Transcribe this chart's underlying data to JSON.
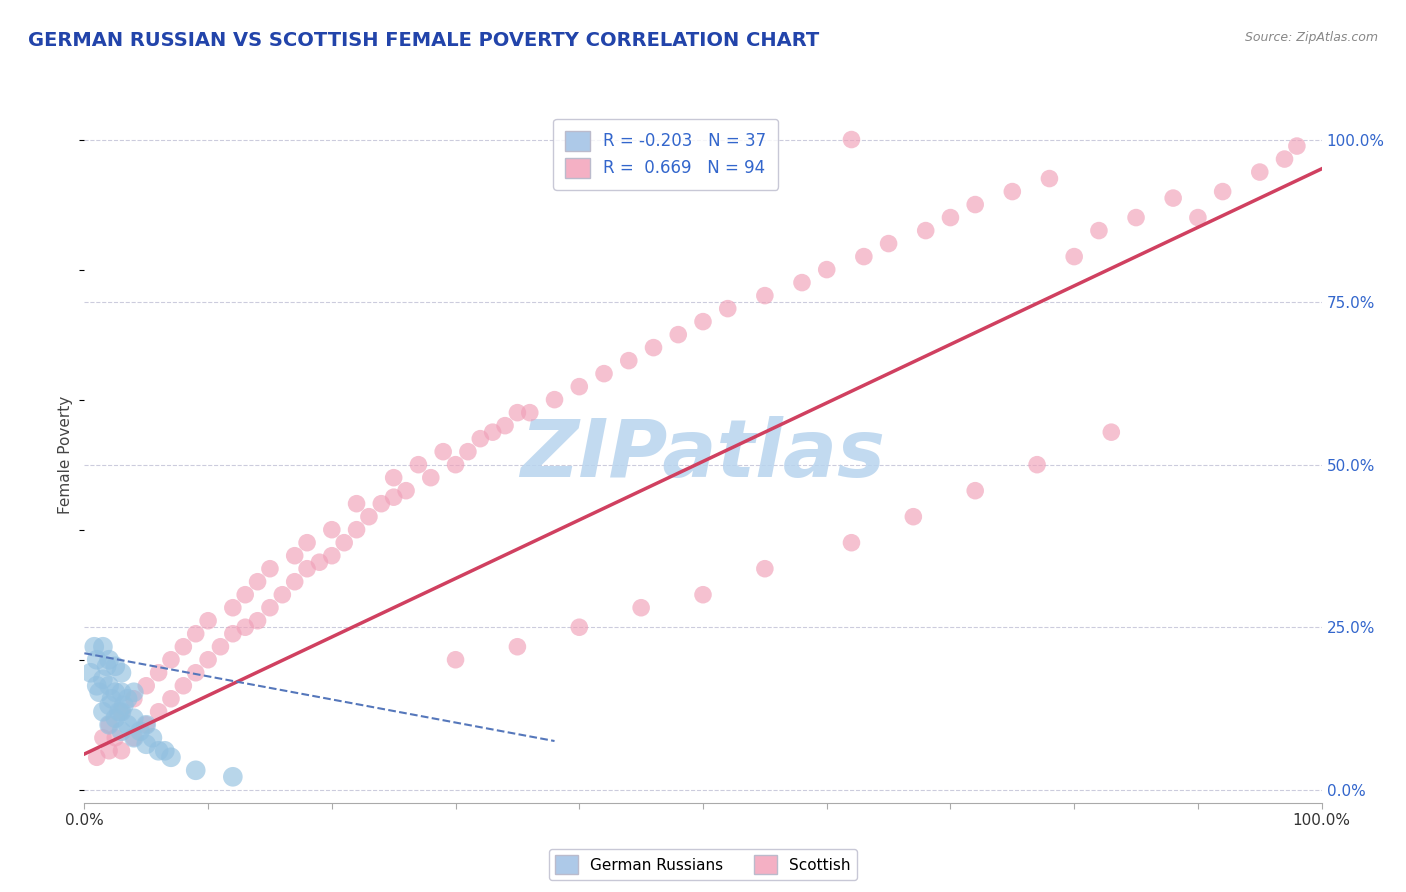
{
  "title": "GERMAN RUSSIAN VS SCOTTISH FEMALE POVERTY CORRELATION CHART",
  "source_text": "Source: ZipAtlas.com",
  "ylabel": "Female Poverty",
  "xlim": [
    0,
    1
  ],
  "ylim": [
    -0.02,
    1.05
  ],
  "blue_color": "#92c0e0",
  "pink_color": "#f0a0b8",
  "blue_line_color": "#5577bb",
  "pink_line_color": "#d04060",
  "legend_text_color": "#3366cc",
  "title_color": "#2244aa",
  "grid_color": "#ccccdd",
  "watermark_color": "#b8d4ee",
  "background_color": "#ffffff",
  "german_russian_x": [
    0.005,
    0.008,
    0.01,
    0.01,
    0.012,
    0.015,
    0.015,
    0.015,
    0.018,
    0.02,
    0.02,
    0.02,
    0.02,
    0.022,
    0.025,
    0.025,
    0.025,
    0.028,
    0.03,
    0.03,
    0.03,
    0.03,
    0.032,
    0.035,
    0.035,
    0.04,
    0.04,
    0.04,
    0.045,
    0.05,
    0.05,
    0.055,
    0.06,
    0.065,
    0.07,
    0.09,
    0.12
  ],
  "german_russian_y": [
    0.18,
    0.22,
    0.16,
    0.2,
    0.15,
    0.12,
    0.17,
    0.22,
    0.19,
    0.1,
    0.13,
    0.16,
    0.2,
    0.14,
    0.11,
    0.15,
    0.19,
    0.12,
    0.09,
    0.12,
    0.15,
    0.18,
    0.13,
    0.1,
    0.14,
    0.08,
    0.11,
    0.15,
    0.09,
    0.07,
    0.1,
    0.08,
    0.06,
    0.06,
    0.05,
    0.03,
    0.02
  ],
  "scottish_x": [
    0.01,
    0.015,
    0.02,
    0.02,
    0.025,
    0.03,
    0.03,
    0.04,
    0.04,
    0.05,
    0.05,
    0.06,
    0.06,
    0.07,
    0.07,
    0.08,
    0.08,
    0.09,
    0.09,
    0.1,
    0.1,
    0.11,
    0.12,
    0.12,
    0.13,
    0.13,
    0.14,
    0.14,
    0.15,
    0.15,
    0.16,
    0.17,
    0.17,
    0.18,
    0.18,
    0.19,
    0.2,
    0.2,
    0.21,
    0.22,
    0.22,
    0.23,
    0.24,
    0.25,
    0.25,
    0.26,
    0.27,
    0.28,
    0.29,
    0.3,
    0.31,
    0.32,
    0.33,
    0.34,
    0.35,
    0.36,
    0.38,
    0.4,
    0.42,
    0.44,
    0.46,
    0.48,
    0.5,
    0.52,
    0.55,
    0.58,
    0.6,
    0.63,
    0.65,
    0.68,
    0.7,
    0.72,
    0.75,
    0.78,
    0.8,
    0.82,
    0.85,
    0.88,
    0.9,
    0.92,
    0.95,
    0.97,
    0.98,
    0.3,
    0.35,
    0.4,
    0.45,
    0.5,
    0.55,
    0.62,
    0.67,
    0.72,
    0.77,
    0.83
  ],
  "scottish_y": [
    0.05,
    0.08,
    0.06,
    0.1,
    0.08,
    0.06,
    0.12,
    0.08,
    0.14,
    0.1,
    0.16,
    0.12,
    0.18,
    0.14,
    0.2,
    0.16,
    0.22,
    0.18,
    0.24,
    0.2,
    0.26,
    0.22,
    0.24,
    0.28,
    0.25,
    0.3,
    0.26,
    0.32,
    0.28,
    0.34,
    0.3,
    0.32,
    0.36,
    0.34,
    0.38,
    0.35,
    0.36,
    0.4,
    0.38,
    0.4,
    0.44,
    0.42,
    0.44,
    0.45,
    0.48,
    0.46,
    0.5,
    0.48,
    0.52,
    0.5,
    0.52,
    0.54,
    0.55,
    0.56,
    0.58,
    0.58,
    0.6,
    0.62,
    0.64,
    0.66,
    0.68,
    0.7,
    0.72,
    0.74,
    0.76,
    0.78,
    0.8,
    0.82,
    0.84,
    0.86,
    0.88,
    0.9,
    0.92,
    0.94,
    0.82,
    0.86,
    0.88,
    0.91,
    0.88,
    0.92,
    0.95,
    0.97,
    0.99,
    0.2,
    0.22,
    0.25,
    0.28,
    0.3,
    0.34,
    0.38,
    0.42,
    0.46,
    0.5,
    0.55
  ],
  "scottish_outlier_x": [
    0.62
  ],
  "scottish_outlier_y": [
    1.0
  ],
  "pink_line_x": [
    0.0,
    1.0
  ],
  "pink_line_y": [
    0.055,
    0.955
  ],
  "blue_line_x": [
    0.0,
    0.38
  ],
  "blue_line_y": [
    0.21,
    0.075
  ]
}
